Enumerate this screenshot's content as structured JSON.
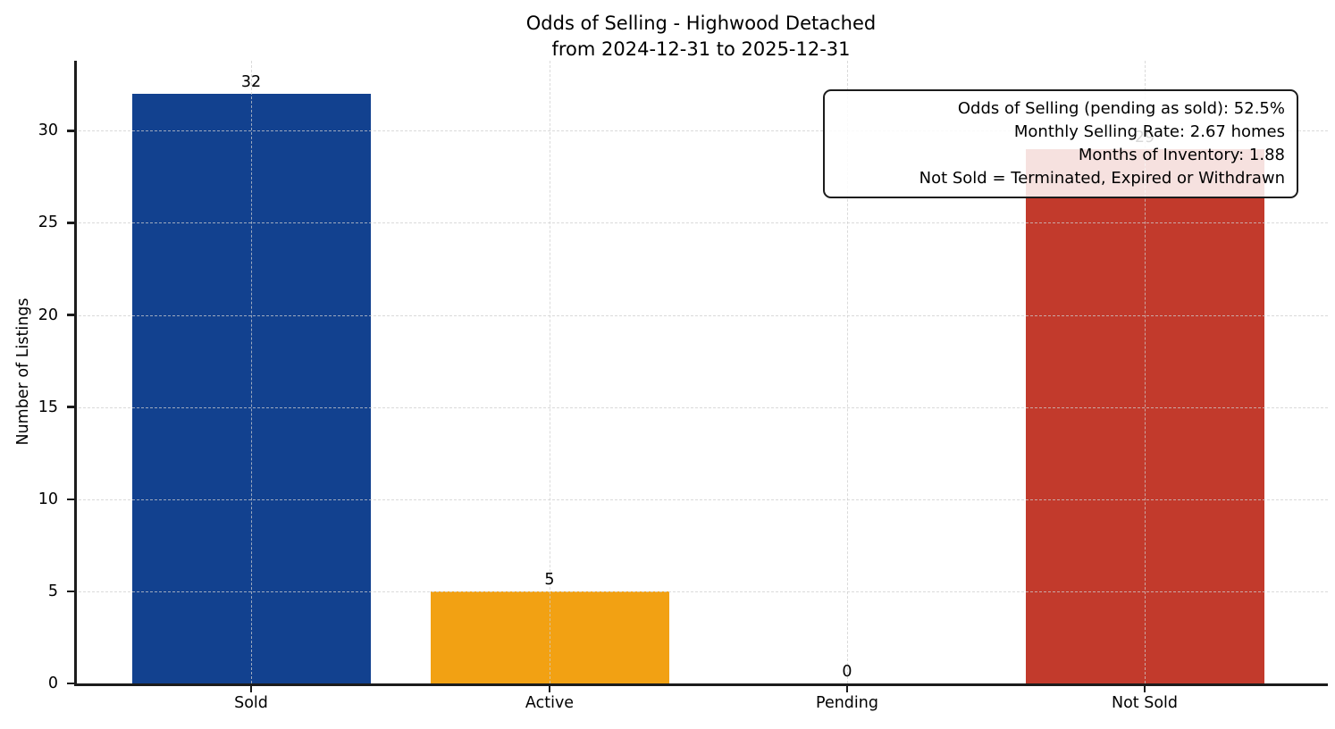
{
  "chart_data": {
    "type": "bar",
    "title_lines": [
      "Odds of Selling - Highwood Detached",
      "from 2024-12-31 to 2025-12-31"
    ],
    "ylabel": "Number of Listings",
    "xlabel": "",
    "categories": [
      "Sold",
      "Active",
      "Pending",
      "Not Sold"
    ],
    "values": [
      32,
      5,
      0,
      29
    ],
    "value_labels": [
      "32",
      "5",
      "0",
      "29"
    ],
    "bar_colors": [
      "#12418F",
      "#F2A113",
      "#9A9A9A",
      "#C23A2C"
    ],
    "ylim": [
      0,
      33.8
    ],
    "yticks": [
      0,
      5,
      10,
      15,
      20,
      25,
      30
    ],
    "grid": true,
    "grid_style": "dashed",
    "legend": "none",
    "annotation": {
      "position": "top-right",
      "lines": [
        "Odds of Selling (pending as sold): 52.5%",
        "Monthly Selling Rate: 2.67 homes",
        "Months of Inventory: 1.88",
        "Not Sold = Terminated, Expired or Withdrawn"
      ]
    }
  }
}
